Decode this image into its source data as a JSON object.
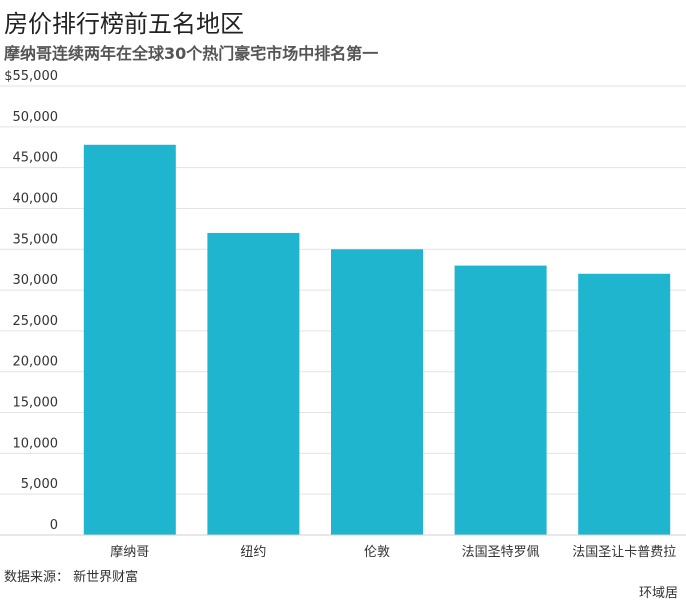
{
  "header": {
    "title": "房价排行榜前五名地区",
    "subtitle": "摩纳哥连续两年在全球30个热门豪宅市场中排名第一"
  },
  "footer": {
    "source": "数据来源： 新世界财富",
    "brand": "环域居"
  },
  "chart_data": {
    "type": "bar",
    "categories": [
      "摩纳哥",
      "纽约",
      "伦敦",
      "法国圣特罗佩",
      "法国圣让卡普费拉"
    ],
    "values": [
      47800,
      37000,
      35000,
      33000,
      32000
    ],
    "ylim": [
      0,
      55000
    ],
    "yticks": [
      0,
      5000,
      10000,
      15000,
      20000,
      25000,
      30000,
      35000,
      40000,
      45000,
      50000,
      55000
    ],
    "ytick_labels": [
      "0",
      "5,000",
      "10,000",
      "15,000",
      "20,000",
      "25,000",
      "30,000",
      "35,000",
      "40,000",
      "45,000",
      "50,000",
      "$55,000"
    ],
    "grid": true,
    "bar_color": "#1fb5ce",
    "grid_color": "#e3e3e3",
    "title": "",
    "xlabel": "",
    "ylabel": ""
  }
}
